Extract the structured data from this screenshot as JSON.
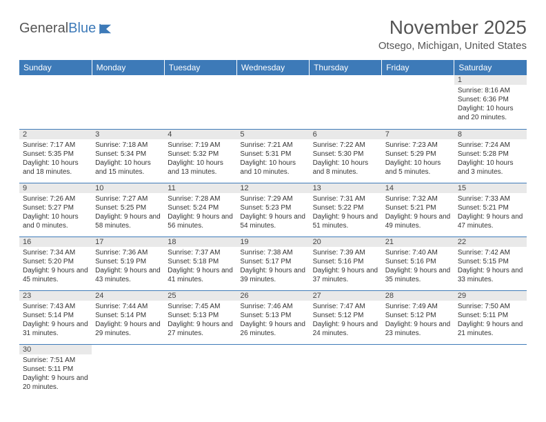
{
  "logo": {
    "word1": "General",
    "word2": "Blue"
  },
  "title": "November 2025",
  "location": "Otsego, Michigan, United States",
  "colors": {
    "header_bg": "#3d7ab8",
    "header_fg": "#ffffff",
    "daynum_bg": "#e9e9e9",
    "rule": "#3d7ab8",
    "text": "#333333",
    "title_text": "#555555"
  },
  "weekdays": [
    "Sunday",
    "Monday",
    "Tuesday",
    "Wednesday",
    "Thursday",
    "Friday",
    "Saturday"
  ],
  "weeks": [
    [
      {
        "n": "",
        "sunrise": "",
        "sunset": "",
        "daylight": ""
      },
      {
        "n": "",
        "sunrise": "",
        "sunset": "",
        "daylight": ""
      },
      {
        "n": "",
        "sunrise": "",
        "sunset": "",
        "daylight": ""
      },
      {
        "n": "",
        "sunrise": "",
        "sunset": "",
        "daylight": ""
      },
      {
        "n": "",
        "sunrise": "",
        "sunset": "",
        "daylight": ""
      },
      {
        "n": "",
        "sunrise": "",
        "sunset": "",
        "daylight": ""
      },
      {
        "n": "1",
        "sunrise": "Sunrise: 8:16 AM",
        "sunset": "Sunset: 6:36 PM",
        "daylight": "Daylight: 10 hours and 20 minutes."
      }
    ],
    [
      {
        "n": "2",
        "sunrise": "Sunrise: 7:17 AM",
        "sunset": "Sunset: 5:35 PM",
        "daylight": "Daylight: 10 hours and 18 minutes."
      },
      {
        "n": "3",
        "sunrise": "Sunrise: 7:18 AM",
        "sunset": "Sunset: 5:34 PM",
        "daylight": "Daylight: 10 hours and 15 minutes."
      },
      {
        "n": "4",
        "sunrise": "Sunrise: 7:19 AM",
        "sunset": "Sunset: 5:32 PM",
        "daylight": "Daylight: 10 hours and 13 minutes."
      },
      {
        "n": "5",
        "sunrise": "Sunrise: 7:21 AM",
        "sunset": "Sunset: 5:31 PM",
        "daylight": "Daylight: 10 hours and 10 minutes."
      },
      {
        "n": "6",
        "sunrise": "Sunrise: 7:22 AM",
        "sunset": "Sunset: 5:30 PM",
        "daylight": "Daylight: 10 hours and 8 minutes."
      },
      {
        "n": "7",
        "sunrise": "Sunrise: 7:23 AM",
        "sunset": "Sunset: 5:29 PM",
        "daylight": "Daylight: 10 hours and 5 minutes."
      },
      {
        "n": "8",
        "sunrise": "Sunrise: 7:24 AM",
        "sunset": "Sunset: 5:28 PM",
        "daylight": "Daylight: 10 hours and 3 minutes."
      }
    ],
    [
      {
        "n": "9",
        "sunrise": "Sunrise: 7:26 AM",
        "sunset": "Sunset: 5:27 PM",
        "daylight": "Daylight: 10 hours and 0 minutes."
      },
      {
        "n": "10",
        "sunrise": "Sunrise: 7:27 AM",
        "sunset": "Sunset: 5:25 PM",
        "daylight": "Daylight: 9 hours and 58 minutes."
      },
      {
        "n": "11",
        "sunrise": "Sunrise: 7:28 AM",
        "sunset": "Sunset: 5:24 PM",
        "daylight": "Daylight: 9 hours and 56 minutes."
      },
      {
        "n": "12",
        "sunrise": "Sunrise: 7:29 AM",
        "sunset": "Sunset: 5:23 PM",
        "daylight": "Daylight: 9 hours and 54 minutes."
      },
      {
        "n": "13",
        "sunrise": "Sunrise: 7:31 AM",
        "sunset": "Sunset: 5:22 PM",
        "daylight": "Daylight: 9 hours and 51 minutes."
      },
      {
        "n": "14",
        "sunrise": "Sunrise: 7:32 AM",
        "sunset": "Sunset: 5:21 PM",
        "daylight": "Daylight: 9 hours and 49 minutes."
      },
      {
        "n": "15",
        "sunrise": "Sunrise: 7:33 AM",
        "sunset": "Sunset: 5:21 PM",
        "daylight": "Daylight: 9 hours and 47 minutes."
      }
    ],
    [
      {
        "n": "16",
        "sunrise": "Sunrise: 7:34 AM",
        "sunset": "Sunset: 5:20 PM",
        "daylight": "Daylight: 9 hours and 45 minutes."
      },
      {
        "n": "17",
        "sunrise": "Sunrise: 7:36 AM",
        "sunset": "Sunset: 5:19 PM",
        "daylight": "Daylight: 9 hours and 43 minutes."
      },
      {
        "n": "18",
        "sunrise": "Sunrise: 7:37 AM",
        "sunset": "Sunset: 5:18 PM",
        "daylight": "Daylight: 9 hours and 41 minutes."
      },
      {
        "n": "19",
        "sunrise": "Sunrise: 7:38 AM",
        "sunset": "Sunset: 5:17 PM",
        "daylight": "Daylight: 9 hours and 39 minutes."
      },
      {
        "n": "20",
        "sunrise": "Sunrise: 7:39 AM",
        "sunset": "Sunset: 5:16 PM",
        "daylight": "Daylight: 9 hours and 37 minutes."
      },
      {
        "n": "21",
        "sunrise": "Sunrise: 7:40 AM",
        "sunset": "Sunset: 5:16 PM",
        "daylight": "Daylight: 9 hours and 35 minutes."
      },
      {
        "n": "22",
        "sunrise": "Sunrise: 7:42 AM",
        "sunset": "Sunset: 5:15 PM",
        "daylight": "Daylight: 9 hours and 33 minutes."
      }
    ],
    [
      {
        "n": "23",
        "sunrise": "Sunrise: 7:43 AM",
        "sunset": "Sunset: 5:14 PM",
        "daylight": "Daylight: 9 hours and 31 minutes."
      },
      {
        "n": "24",
        "sunrise": "Sunrise: 7:44 AM",
        "sunset": "Sunset: 5:14 PM",
        "daylight": "Daylight: 9 hours and 29 minutes."
      },
      {
        "n": "25",
        "sunrise": "Sunrise: 7:45 AM",
        "sunset": "Sunset: 5:13 PM",
        "daylight": "Daylight: 9 hours and 27 minutes."
      },
      {
        "n": "26",
        "sunrise": "Sunrise: 7:46 AM",
        "sunset": "Sunset: 5:13 PM",
        "daylight": "Daylight: 9 hours and 26 minutes."
      },
      {
        "n": "27",
        "sunrise": "Sunrise: 7:47 AM",
        "sunset": "Sunset: 5:12 PM",
        "daylight": "Daylight: 9 hours and 24 minutes."
      },
      {
        "n": "28",
        "sunrise": "Sunrise: 7:49 AM",
        "sunset": "Sunset: 5:12 PM",
        "daylight": "Daylight: 9 hours and 23 minutes."
      },
      {
        "n": "29",
        "sunrise": "Sunrise: 7:50 AM",
        "sunset": "Sunset: 5:11 PM",
        "daylight": "Daylight: 9 hours and 21 minutes."
      }
    ],
    [
      {
        "n": "30",
        "sunrise": "Sunrise: 7:51 AM",
        "sunset": "Sunset: 5:11 PM",
        "daylight": "Daylight: 9 hours and 20 minutes."
      },
      {
        "n": "",
        "sunrise": "",
        "sunset": "",
        "daylight": ""
      },
      {
        "n": "",
        "sunrise": "",
        "sunset": "",
        "daylight": ""
      },
      {
        "n": "",
        "sunrise": "",
        "sunset": "",
        "daylight": ""
      },
      {
        "n": "",
        "sunrise": "",
        "sunset": "",
        "daylight": ""
      },
      {
        "n": "",
        "sunrise": "",
        "sunset": "",
        "daylight": ""
      },
      {
        "n": "",
        "sunrise": "",
        "sunset": "",
        "daylight": ""
      }
    ]
  ]
}
